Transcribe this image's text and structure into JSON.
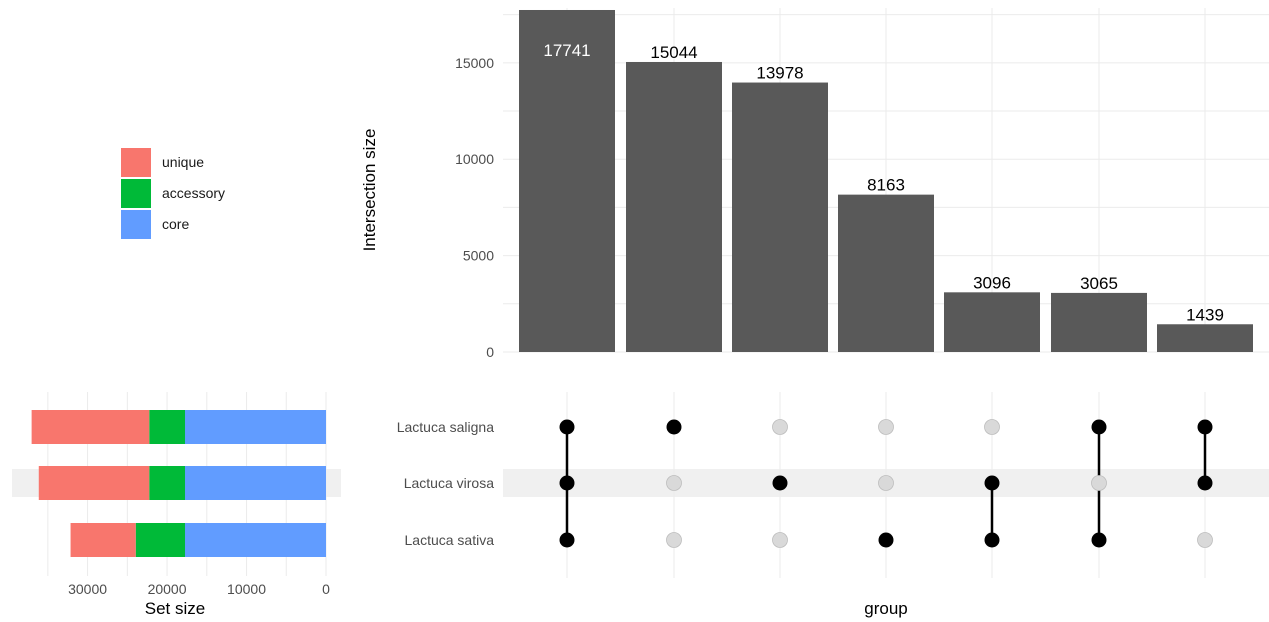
{
  "chart_data": {
    "type": "upset",
    "intersection_bars": {
      "ylabel": "Intersection size",
      "xlabel": "group",
      "yticks": [
        0,
        5000,
        10000,
        15000
      ],
      "ylim": [
        0,
        18000
      ],
      "values": [
        17741,
        15044,
        13978,
        8163,
        3096,
        3065,
        1439
      ],
      "labels": [
        "17741",
        "15044",
        "13978",
        "8163",
        "3096",
        "3065",
        "1439"
      ],
      "bar_color": "#595959"
    },
    "sets": [
      "Lactuca saligna",
      "Lactuca virosa",
      "Lactuca sativa"
    ],
    "matrix": [
      [
        true,
        true,
        true
      ],
      [
        true,
        false,
        false
      ],
      [
        false,
        true,
        false
      ],
      [
        false,
        false,
        true
      ],
      [
        false,
        true,
        true
      ],
      [
        true,
        false,
        true
      ],
      [
        true,
        true,
        false
      ]
    ],
    "set_size": {
      "xlabel": "Set size",
      "xticks": [
        30000,
        20000,
        10000,
        0
      ],
      "xticklabels": [
        "30000",
        "20000",
        "10000",
        "0"
      ],
      "xlim": [
        38000,
        0
      ],
      "segments_order": [
        "core",
        "accessory",
        "unique"
      ],
      "values": [
        {
          "set": "Lactuca saligna",
          "core": 17741,
          "accessory": 4500,
          "unique": 14800
        },
        {
          "set": "Lactuca virosa",
          "core": 17741,
          "accessory": 4500,
          "unique": 13900
        },
        {
          "set": "Lactuca sativa",
          "core": 17741,
          "accessory": 6200,
          "unique": 8200
        }
      ]
    },
    "legend": {
      "placement": "top-left",
      "items": [
        {
          "name": "unique",
          "color": "#F8766D"
        },
        {
          "name": "accessory",
          "color": "#00BA38"
        },
        {
          "name": "core",
          "color": "#619CFF"
        }
      ]
    },
    "highlighted_set_row": "Lactuca virosa"
  }
}
